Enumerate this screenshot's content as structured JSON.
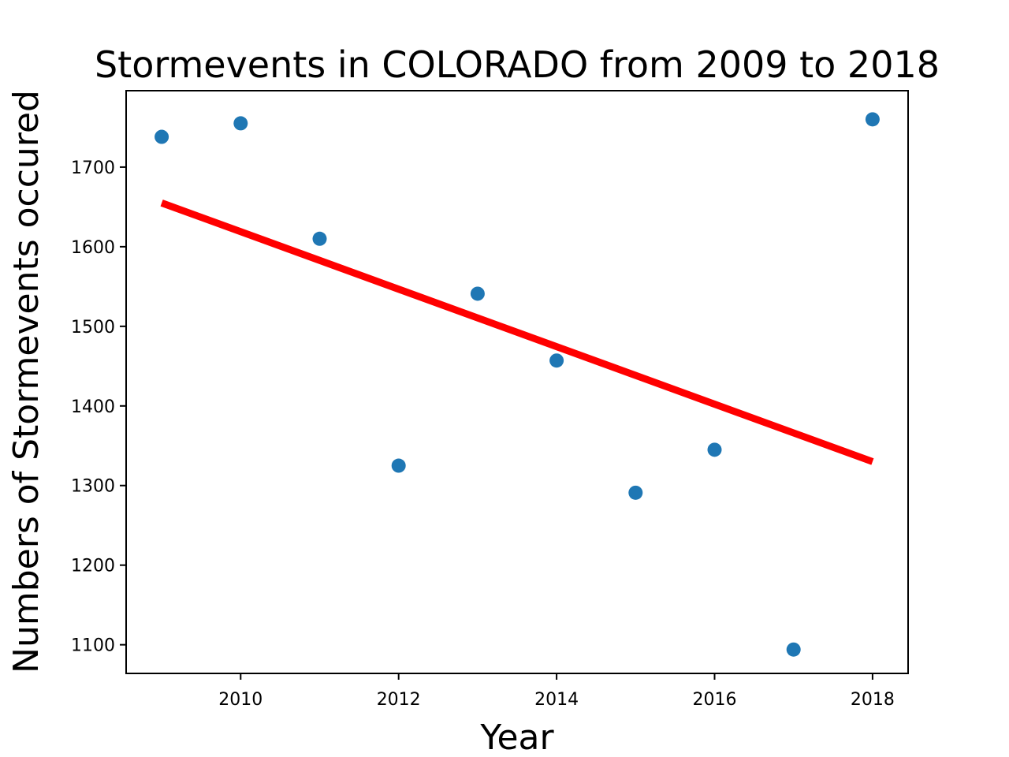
{
  "chart_data": {
    "type": "scatter",
    "title": "Stormevents in COLORADO from 2009 to 2018",
    "xlabel": "Year",
    "ylabel": "Numbers of Stormevents occured",
    "xlim": [
      2008.55,
      2018.45
    ],
    "ylim": [
      1064,
      1796
    ],
    "x_ticks": [
      2010,
      2012,
      2014,
      2016,
      2018
    ],
    "y_ticks": [
      1100,
      1200,
      1300,
      1400,
      1500,
      1600,
      1700
    ],
    "grid": false,
    "legend": "none",
    "series": [
      {
        "type": "scatter",
        "color": "#1f77b4",
        "x": [
          2009,
          2010,
          2011,
          2012,
          2013,
          2014,
          2015,
          2016,
          2017,
          2018
        ],
        "y": [
          1738,
          1755,
          1610,
          1325,
          1541,
          1457,
          1291,
          1345,
          1094,
          1760
        ]
      },
      {
        "type": "line",
        "color": "#ff0000",
        "x": [
          2009,
          2018
        ],
        "y": [
          1655,
          1330
        ]
      }
    ]
  }
}
